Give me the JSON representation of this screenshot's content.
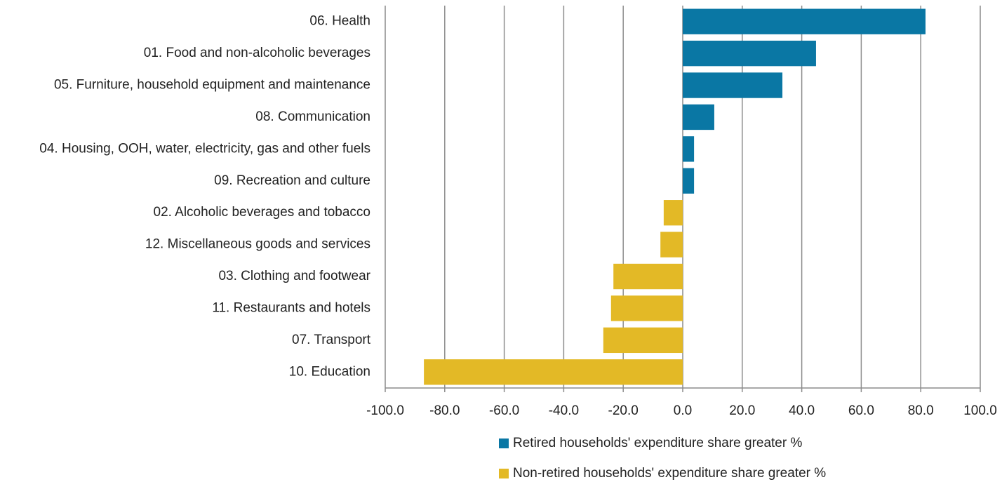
{
  "chart_data": {
    "type": "bar",
    "orientation": "horizontal",
    "categories": [
      "06. Health",
      "01. Food and non-alcoholic beverages",
      "05. Furniture, household equipment and maintenance",
      "08. Communication",
      "04. Housing, OOH, water, electricity, gas and other fuels",
      "09. Recreation and culture",
      "02. Alcoholic beverages and tobacco",
      "12. Miscellaneous goods and services",
      "03. Clothing and footwear",
      "11. Restaurants and hotels",
      "07. Transport",
      "10. Education"
    ],
    "series": [
      {
        "name": "Retired households' expenditure share greater %",
        "color": "#0a77a4",
        "values": [
          81.6,
          44.8,
          33.5,
          10.6,
          3.8,
          3.8,
          null,
          null,
          null,
          null,
          null,
          null
        ]
      },
      {
        "name": "Non-retired households' expenditure share greater %",
        "color": "#e3b926",
        "values": [
          null,
          null,
          null,
          null,
          null,
          null,
          -6.4,
          -7.5,
          -23.3,
          -24.1,
          -26.7,
          -87.0
        ]
      }
    ],
    "xlim": [
      -100,
      100
    ],
    "xticks": [
      {
        "value": -100,
        "label": "-100.0"
      },
      {
        "value": -80,
        "label": "-80.0"
      },
      {
        "value": -60,
        "label": "-60.0"
      },
      {
        "value": -40,
        "label": "-40.0"
      },
      {
        "value": -20,
        "label": "-20.0"
      },
      {
        "value": 0,
        "label": "0.0"
      },
      {
        "value": 20,
        "label": "20.0"
      },
      {
        "value": 40,
        "label": "40.0"
      },
      {
        "value": 60,
        "label": "60.0"
      },
      {
        "value": 80,
        "label": "80.0"
      },
      {
        "value": 100,
        "label": "100.0"
      }
    ],
    "grid": true,
    "legend": "bottom"
  }
}
